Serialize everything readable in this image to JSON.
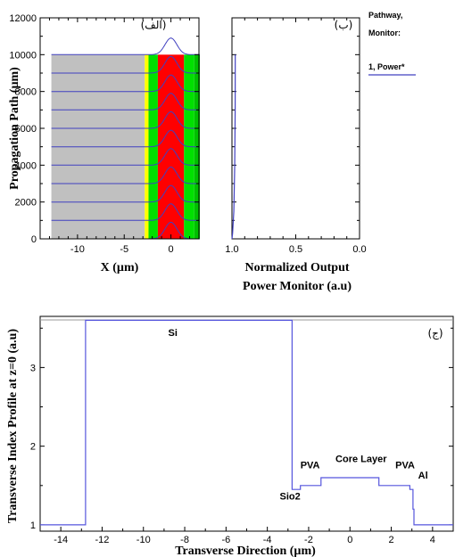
{
  "chart_data": [
    {
      "id": "a",
      "type": "heatmap",
      "panel_label": "(الف)",
      "xlabel": "X (µm)",
      "ylabel": "Propagation Path (µm)",
      "xlim": [
        -14,
        3
      ],
      "ylim": [
        0,
        12000
      ],
      "x_ticks": [
        -10,
        -5,
        0
      ],
      "y_ticks": [
        0,
        2000,
        4000,
        6000,
        8000,
        10000,
        12000
      ],
      "y_tick_labels": [
        "0",
        "2000",
        "4000",
        "6000",
        "8000",
        "10000",
        "12000"
      ],
      "regions": [
        {
          "name": "Si",
          "x0": -12.8,
          "x1": -2.8,
          "color": "#c0c0c0"
        },
        {
          "name": "Sio2",
          "x0": -2.8,
          "x1": -2.4,
          "color": "#ffff00"
        },
        {
          "name": "PVA",
          "x0": -2.4,
          "x1": -1.4,
          "color": "#00e000"
        },
        {
          "name": "Core Layer",
          "x0": -1.4,
          "x1": 1.4,
          "color": "#ff0000"
        },
        {
          "name": "PVA",
          "x0": 1.4,
          "x1": 2.5,
          "color": "#00e000"
        },
        {
          "name": "Al",
          "x0": 2.5,
          "x1": 3.1,
          "color": "#00c000"
        }
      ],
      "field_region_top": 10000,
      "profile_z": [
        0,
        1000,
        2000,
        3000,
        4000,
        5000,
        6000,
        7000,
        8000,
        9000,
        10000
      ],
      "profile_center": 0,
      "profile_peak_height": 900,
      "profile_width": 0.9,
      "line_color": "#4040c0"
    },
    {
      "id": "b",
      "type": "line",
      "panel_label": "(ب)",
      "xlabel": "Normalized Output\nPower Monitor (a.u)",
      "xlim": [
        1.0,
        0.0
      ],
      "ylim": [
        0,
        12000
      ],
      "x_ticks": [
        1.0,
        0.5,
        0.0
      ],
      "x_tick_labels": [
        "1.0",
        "0.5",
        "0.0"
      ],
      "legend_title": [
        "Pathway,",
        "Monitor:"
      ],
      "series": [
        {
          "name": "1, Power*",
          "color": "#4040c0",
          "x": [
            1.0,
            0.995,
            0.985,
            0.978,
            0.975,
            0.974
          ],
          "y": [
            0,
            300,
            1500,
            4000,
            7000,
            10000
          ]
        }
      ]
    },
    {
      "id": "c",
      "type": "line",
      "panel_label": "(ج)",
      "xlabel": "Transverse Direction (µm)",
      "ylabel": "Transverse Index Profile at z=0 (a.u)",
      "xlim": [
        -15,
        5
      ],
      "ylim": [
        0.92,
        3.65
      ],
      "x_ticks": [
        -14,
        -12,
        -10,
        -8,
        -6,
        -4,
        -2,
        0,
        2,
        4
      ],
      "y_ticks": [
        1,
        2,
        3
      ],
      "series": [
        {
          "color": "#5555dd",
          "x": [
            -15,
            -12.8,
            -12.8,
            -2.8,
            -2.8,
            -2.4,
            -2.4,
            -1.4,
            -1.4,
            1.4,
            1.4,
            2.9,
            2.9,
            3.05,
            3.05,
            3.1,
            3.1,
            5
          ],
          "y": [
            1.0,
            1.0,
            3.6,
            3.6,
            1.45,
            1.45,
            1.5,
            1.5,
            1.6,
            1.6,
            1.5,
            1.5,
            1.45,
            1.45,
            1.2,
            1.2,
            1.0,
            1.0
          ]
        }
      ],
      "annotations": [
        {
          "text": "Si",
          "x": -8.8,
          "y": 3.4
        },
        {
          "text": "Sio2",
          "x": -3.4,
          "y": 1.32
        },
        {
          "text": "PVA",
          "x": -2.4,
          "y": 1.72
        },
        {
          "text": "Core Layer",
          "x": -0.7,
          "y": 1.8
        },
        {
          "text": "PVA",
          "x": 2.2,
          "y": 1.72
        },
        {
          "text": "Al",
          "x": 3.3,
          "y": 1.59
        }
      ]
    }
  ]
}
